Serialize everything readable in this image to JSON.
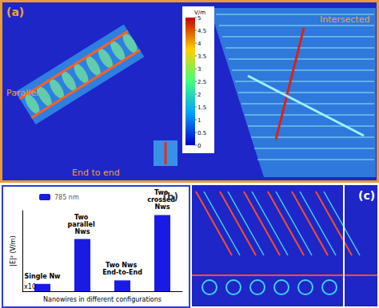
{
  "chart_data": {
    "type": "bar",
    "title": "(b)",
    "categories": [
      "Single Nw",
      "Two parallel Nws",
      "Two Nws End-to-End",
      "Two crossed Nws"
    ],
    "series": [
      {
        "name": "785 nm",
        "color": "#1a1ae6",
        "values": [
          0.42,
          2.98,
          0.62,
          4.35
        ]
      }
    ],
    "x_label": "Nanowires in different configurations",
    "y_label": "|E|² (V/m)",
    "ylim": [
      0,
      4.6
    ],
    "legend": "upper left",
    "grid": false,
    "tick_labels": false,
    "annotations": [
      {
        "text": "x10",
        "category": "Single Nw"
      }
    ]
  },
  "panel_a": {
    "label": "(a)",
    "texts": {
      "parallel": "Parallel",
      "intersected": "Intersected",
      "end_to_end": "End to end"
    },
    "colorbar": {
      "title": "V/m",
      "range": [
        0,
        5
      ],
      "ticks": [
        0,
        0.5,
        1,
        1.5,
        2,
        2.5,
        3,
        3.5,
        4,
        4.5,
        5
      ]
    }
  },
  "panel_c": {
    "label": "(c)"
  }
}
